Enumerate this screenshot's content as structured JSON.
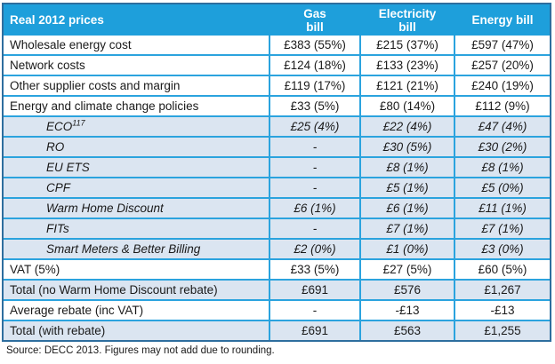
{
  "table": {
    "header": {
      "col1": "Real 2012 prices",
      "col2": "Gas\nbill",
      "col3": "Electricity\nbill",
      "col4": "Energy bill"
    },
    "rows": [
      {
        "label": "Wholesale energy cost",
        "gas": "£383 (55%)",
        "electricity": "£215 (37%)",
        "energy": "£597 (47%)",
        "style": "plain"
      },
      {
        "label": "Network costs",
        "gas": "£124 (18%)",
        "electricity": "£133 (23%)",
        "energy": "£257 (20%)",
        "style": "plain"
      },
      {
        "label": "Other supplier costs and margin",
        "gas": "£119 (17%)",
        "electricity": "£121 (21%)",
        "energy": "£240 (19%)",
        "style": "plain"
      },
      {
        "label": "Energy and climate change policies",
        "gas": "£33 (5%)",
        "electricity": "£80 (14%)",
        "energy": "£112 (9%)",
        "style": "plain"
      },
      {
        "label": "ECO",
        "sup": "117",
        "gas": "£25 (4%)",
        "electricity": "£22 (4%)",
        "energy": "£47 (4%)",
        "style": "sub"
      },
      {
        "label": "RO",
        "gas": "-",
        "electricity": "£30 (5%)",
        "energy": "£30 (2%)",
        "style": "sub"
      },
      {
        "label": "EU ETS",
        "gas": "-",
        "electricity": "£8 (1%)",
        "energy": "£8 (1%)",
        "style": "sub"
      },
      {
        "label": "CPF",
        "gas": "-",
        "electricity": "£5 (1%)",
        "energy": "£5 (0%)",
        "style": "sub"
      },
      {
        "label": "Warm Home Discount",
        "gas": "£6 (1%)",
        "electricity": "£6 (1%)",
        "energy": "£11 (1%)",
        "style": "sub"
      },
      {
        "label": "FITs",
        "gas": "-",
        "electricity": "£7 (1%)",
        "energy": "£7 (1%)",
        "style": "sub"
      },
      {
        "label": "Smart Meters & Better Billing",
        "gas": "£2 (0%)",
        "electricity": "£1 (0%)",
        "energy": "£3 (0%)",
        "style": "sub"
      },
      {
        "label": "VAT (5%)",
        "gas": "£33 (5%)",
        "electricity": "£27 (5%)",
        "energy": "£60 (5%)",
        "style": "plain"
      },
      {
        "label": "Total (no Warm Home Discount rebate)",
        "gas": "£691",
        "electricity": "£576",
        "energy": "£1,267",
        "style": "total"
      },
      {
        "label": "Average rebate (inc VAT)",
        "gas": "-",
        "electricity": "-£13",
        "energy": "-£13",
        "style": "plain"
      },
      {
        "label": "Total (with rebate)",
        "gas": "£691",
        "electricity": "£563",
        "energy": "£1,255",
        "style": "total"
      }
    ],
    "source_note": "Source: DECC 2013. Figures may not add due to rounding."
  },
  "colors": {
    "header_bg": "#1E9FDB",
    "grid_line": "#2BA3DE",
    "shaded_row_bg": "#DBE5F1",
    "outer_border": "#2E6E9E",
    "header_text": "#FFFFFF",
    "body_text": "#1A1A1A"
  }
}
